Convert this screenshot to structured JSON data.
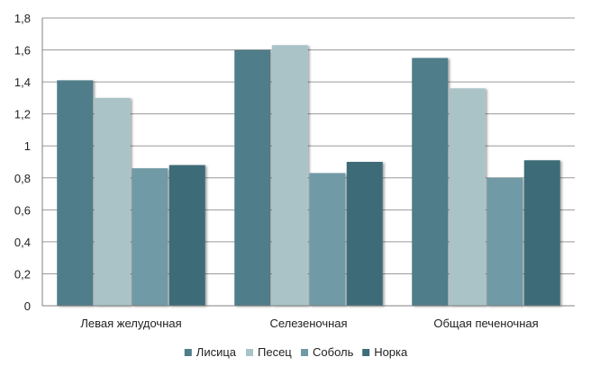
{
  "chart_data": {
    "type": "bar",
    "categories": [
      "Левая желудочная",
      "Селезеночная",
      "Общая печеночная"
    ],
    "series": [
      {
        "name": "Лисица",
        "values": [
          1.41,
          1.6,
          1.55
        ],
        "color": "#4f7d89"
      },
      {
        "name": "Песец",
        "values": [
          1.3,
          1.63,
          1.36
        ],
        "color": "#a9c3c7"
      },
      {
        "name": "Соболь",
        "values": [
          0.86,
          0.83,
          0.8
        ],
        "color": "#6f9aa6"
      },
      {
        "name": "Норка",
        "values": [
          0.88,
          0.9,
          0.91
        ],
        "color": "#3e6c78"
      }
    ],
    "yticks": [
      "0",
      "0,2",
      "0,4",
      "0,6",
      "0,8",
      "1",
      "1,2",
      "1,4",
      "1,6",
      "1,8"
    ],
    "ylim": [
      0,
      1.8
    ],
    "ystep": 0.2,
    "grid": true,
    "legend_position": "bottom",
    "title": "",
    "xlabel": "",
    "ylabel": ""
  }
}
